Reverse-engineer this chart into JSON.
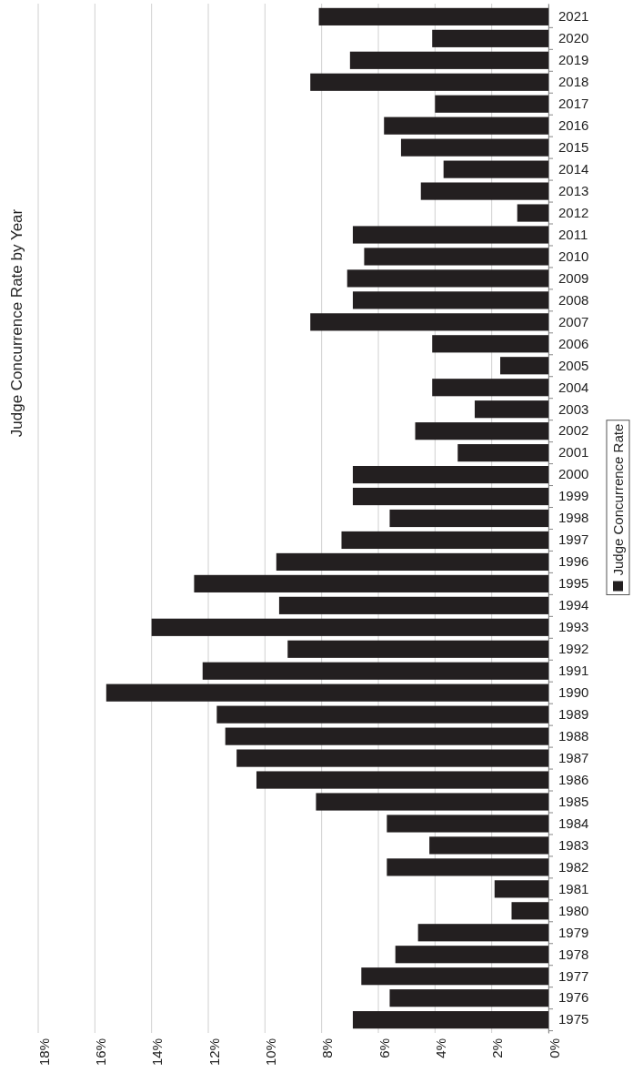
{
  "chart_data": {
    "type": "bar",
    "orientation": "horizontal",
    "title": "Judge Concurrence Rate by Year",
    "categories": [
      "2021",
      "2020",
      "2019",
      "2018",
      "2017",
      "2016",
      "2015",
      "2014",
      "2013",
      "2012",
      "2011",
      "2010",
      "2009",
      "2008",
      "2007",
      "2006",
      "2005",
      "2004",
      "2003",
      "2002",
      "2001",
      "2000",
      "1999",
      "1998",
      "1997",
      "1996",
      "1995",
      "1994",
      "1993",
      "1992",
      "1991",
      "1990",
      "1989",
      "1988",
      "1987",
      "1986",
      "1985",
      "1984",
      "1983",
      "1982",
      "1981",
      "1980",
      "1979",
      "1978",
      "1977",
      "1976",
      "1975"
    ],
    "series": [
      {
        "name": "Judge Concurrence Rate",
        "color": "#231f20",
        "values": [
          8.1,
          4.1,
          7.0,
          8.4,
          4.0,
          5.8,
          5.2,
          3.7,
          4.5,
          1.1,
          6.9,
          6.5,
          7.1,
          6.9,
          8.4,
          4.1,
          1.7,
          4.1,
          2.6,
          4.7,
          3.2,
          6.9,
          6.9,
          5.6,
          7.3,
          9.6,
          12.5,
          9.5,
          14.0,
          9.2,
          12.2,
          15.6,
          11.7,
          11.4,
          11.0,
          10.3,
          8.2,
          5.7,
          4.2,
          5.7,
          1.9,
          1.3,
          4.6,
          5.4,
          6.6,
          5.6,
          6.9
        ]
      }
    ],
    "xlim": [
      18,
      0
    ],
    "xticks": [
      {
        "value": 18,
        "label": "18%"
      },
      {
        "value": 16,
        "label": "16%"
      },
      {
        "value": 14,
        "label": "14%"
      },
      {
        "value": 12,
        "label": "12%"
      },
      {
        "value": 10,
        "label": "10%"
      },
      {
        "value": 8,
        "label": "8%"
      },
      {
        "value": 6,
        "label": "6%"
      },
      {
        "value": 4,
        "label": "4%"
      },
      {
        "value": 2,
        "label": "2%"
      },
      {
        "value": 0,
        "label": "0%"
      }
    ],
    "grid": "x",
    "legend": "right"
  }
}
